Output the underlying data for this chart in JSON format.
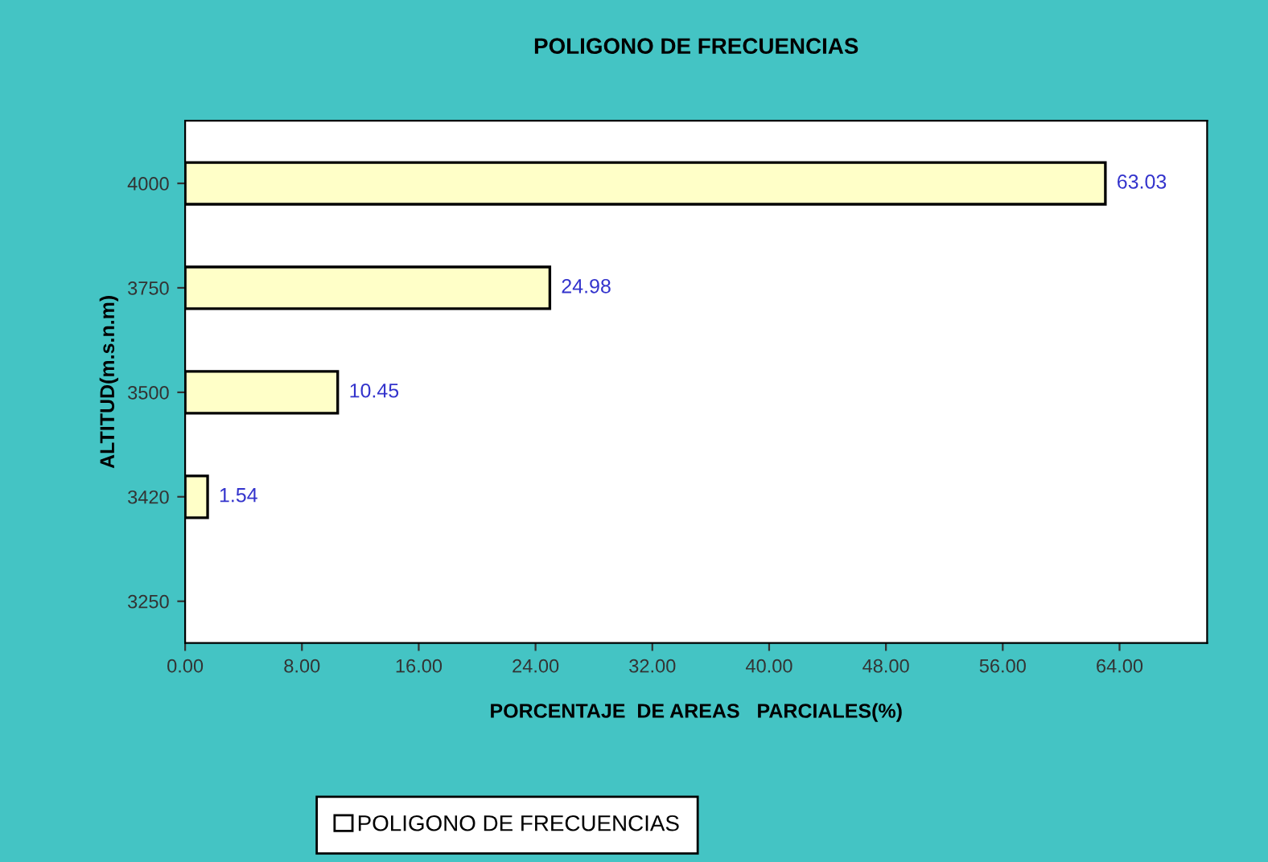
{
  "chart_data": {
    "type": "bar",
    "orientation": "horizontal",
    "title": "POLIGONO DE FRECUENCIAS",
    "xlabel": "PORCENTAJE  DE AREAS   PARCIALES(%)",
    "ylabel": "ALTITUD(m.s.n.m)",
    "categories": [
      "4000",
      "3750",
      "3500",
      "3420",
      "3250"
    ],
    "series": [
      {
        "name": "POLIGONO DE FRECUENCIAS",
        "color": "#ffffc8",
        "values": [
          63.03,
          24.98,
          10.45,
          1.54,
          null
        ]
      }
    ],
    "xlim": [
      0,
      70
    ],
    "xticks": [
      {
        "value": 0,
        "label": "0.00"
      },
      {
        "value": 8,
        "label": "8.00"
      },
      {
        "value": 16,
        "label": "16.00"
      },
      {
        "value": 24,
        "label": "24.00"
      },
      {
        "value": 32,
        "label": "32.00"
      },
      {
        "value": 40,
        "label": "40.00"
      },
      {
        "value": 48,
        "label": "48.00"
      },
      {
        "value": 56,
        "label": "56.00"
      },
      {
        "value": 64,
        "label": "64.00"
      }
    ],
    "data_labels": true,
    "grid": false,
    "legend": "bottom"
  }
}
